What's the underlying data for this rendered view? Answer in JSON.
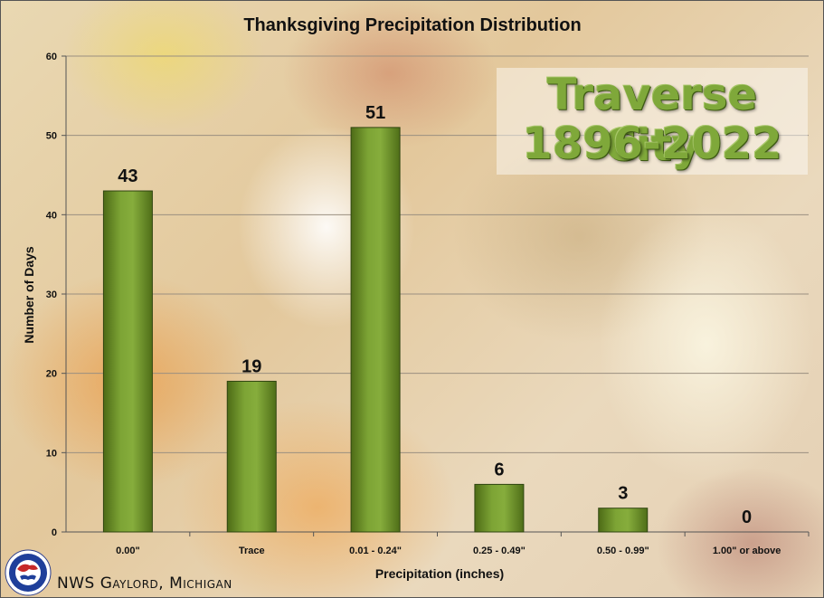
{
  "chart_data": {
    "type": "bar",
    "title": "Thanksgiving Precipitation Distribution",
    "xlabel": "Precipitation (inches)",
    "ylabel": "Number of Days",
    "categories": [
      "0.00\"",
      "Trace",
      "0.01 - 0.24\"",
      "0.25 - 0.49\"",
      "0.50 - 0.99\"",
      "1.00\" or above"
    ],
    "values": [
      43,
      19,
      51,
      6,
      3,
      0
    ],
    "data_labels": [
      "43",
      "19",
      "51",
      "6",
      "3",
      "0"
    ],
    "y_ticks": [
      "0",
      "10",
      "20",
      "30",
      "40",
      "50",
      "60"
    ],
    "ylim": [
      0,
      60
    ],
    "grid": true,
    "bar_color": "#6b8e23"
  },
  "overlay": {
    "line1": "Traverse City",
    "line2": "1896-2022"
  },
  "footer": {
    "credit": "NWS Gaylord, Michigan",
    "logo_icon": "nws-logo-icon"
  }
}
